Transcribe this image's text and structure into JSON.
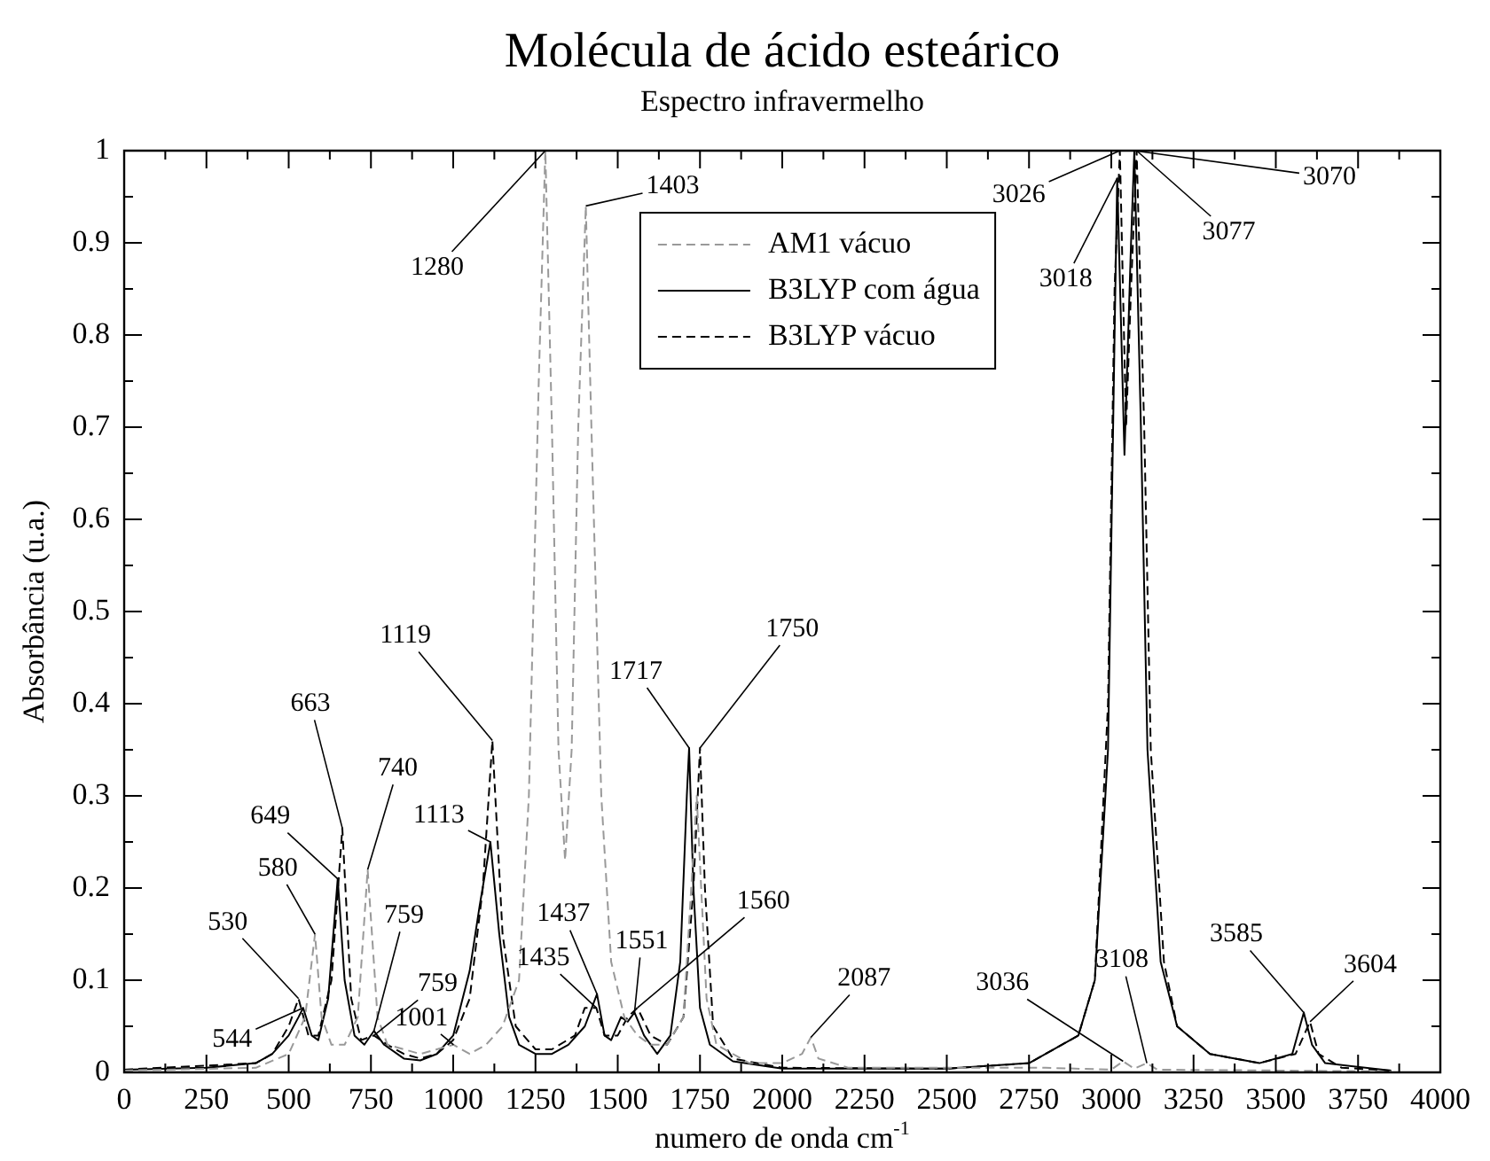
{
  "chart_data": {
    "type": "line",
    "title": "Molécula de ácido esteárico",
    "subtitle": "Espectro infravermelho",
    "xlabel": "numero de onda cm$^{-1}$",
    "ylabel": "Absorbância (u.a.)",
    "xlim": [
      0,
      4000
    ],
    "ylim": [
      0,
      1
    ],
    "xticks": [
      0,
      {
        "value": 125,
        "label": null
      },
      250,
      {
        "value": 375,
        "label": null
      },
      500,
      {
        "value": 625,
        "label": null
      },
      750,
      {
        "value": 875,
        "label": null
      },
      1000,
      {
        "value": 1125,
        "label": null
      },
      1250,
      {
        "value": 1375,
        "label": null
      },
      1500,
      {
        "value": 1625,
        "label": null
      },
      1750,
      {
        "value": 1875,
        "label": null
      },
      2000,
      {
        "value": 2125,
        "label": null
      },
      2250,
      {
        "value": 2375,
        "label": null
      },
      2500,
      {
        "value": 2625,
        "label": null
      },
      2750,
      {
        "value": 2875,
        "label": null
      },
      3000,
      {
        "value": 3125,
        "label": null
      },
      3250,
      {
        "value": 3375,
        "label": null
      },
      3500,
      {
        "value": 3625,
        "label": null
      },
      3750,
      {
        "value": 3875,
        "label": null
      },
      4000
    ],
    "yticks": [
      0,
      {
        "value": 0.05,
        "label": null
      },
      0.1,
      {
        "value": 0.15,
        "label": null
      },
      0.2,
      {
        "value": 0.25,
        "label": null
      },
      0.3,
      {
        "value": 0.35,
        "label": null
      },
      0.4,
      {
        "value": 0.45,
        "label": null
      },
      0.5,
      {
        "value": 0.55,
        "label": null
      },
      0.6,
      {
        "value": 0.65,
        "label": null
      },
      0.7,
      {
        "value": 0.75,
        "label": null
      },
      0.8,
      {
        "value": 0.85,
        "label": null
      },
      0.9,
      {
        "value": 0.95,
        "label": null
      },
      1
    ],
    "grid": false,
    "legend": "top",
    "marker": "none",
    "series": [
      {
        "name": "AM1 vácuo",
        "color": "#999999",
        "line_style": "dashed",
        "x": [
          0,
          400,
          500,
          550,
          580,
          600,
          630,
          670,
          710,
          740,
          770,
          800,
          850,
          900,
          950,
          1001,
          1050,
          1100,
          1150,
          1200,
          1230,
          1260,
          1280,
          1300,
          1320,
          1340,
          1360,
          1380,
          1403,
          1420,
          1450,
          1480,
          1520,
          1560,
          1600,
          1650,
          1700,
          1740,
          1770,
          1800,
          1900,
          2000,
          2060,
          2087,
          2110,
          2200,
          2800,
          3000,
          3036,
          3070,
          3108,
          3140,
          3500,
          3850
        ],
        "values": [
          0.002,
          0.005,
          0.02,
          0.06,
          0.15,
          0.06,
          0.03,
          0.03,
          0.06,
          0.22,
          0.06,
          0.03,
          0.025,
          0.02,
          0.025,
          0.03,
          0.02,
          0.03,
          0.05,
          0.1,
          0.3,
          0.75,
          1.0,
          0.7,
          0.35,
          0.23,
          0.35,
          0.7,
          0.94,
          0.7,
          0.3,
          0.12,
          0.06,
          0.04,
          0.03,
          0.03,
          0.06,
          0.3,
          0.08,
          0.03,
          0.01,
          0.01,
          0.02,
          0.038,
          0.015,
          0.005,
          0.005,
          0.003,
          0.012,
          0.004,
          0.01,
          0.003,
          0.002,
          0.001
        ]
      },
      {
        "name": "B3LYP com água",
        "color": "#000000",
        "line_style": "solid",
        "x": [
          0,
          250,
          400,
          450,
          500,
          530,
          544,
          570,
          590,
          620,
          649,
          670,
          700,
          730,
          759,
          790,
          850,
          900,
          950,
          1000,
          1050,
          1080,
          1113,
          1140,
          1170,
          1200,
          1250,
          1300,
          1350,
          1400,
          1437,
          1460,
          1480,
          1510,
          1530,
          1551,
          1580,
          1620,
          1660,
          1690,
          1710,
          1717,
          1730,
          1750,
          1780,
          1850,
          2000,
          2500,
          2750,
          2900,
          2950,
          2990,
          3010,
          3018,
          3040,
          3060,
          3070,
          3090,
          3110,
          3150,
          3200,
          3300,
          3450,
          3550,
          3585,
          3610,
          3650,
          3850
        ],
        "values": [
          0.003,
          0.005,
          0.01,
          0.02,
          0.04,
          0.06,
          0.07,
          0.04,
          0.035,
          0.08,
          0.21,
          0.1,
          0.04,
          0.03,
          0.045,
          0.03,
          0.015,
          0.013,
          0.02,
          0.04,
          0.11,
          0.18,
          0.25,
          0.15,
          0.06,
          0.03,
          0.02,
          0.02,
          0.03,
          0.05,
          0.085,
          0.04,
          0.035,
          0.06,
          0.055,
          0.065,
          0.04,
          0.02,
          0.04,
          0.12,
          0.3,
          0.352,
          0.2,
          0.07,
          0.03,
          0.012,
          0.004,
          0.004,
          0.01,
          0.04,
          0.1,
          0.35,
          0.8,
          0.97,
          0.67,
          0.9,
          1.0,
          0.7,
          0.35,
          0.12,
          0.05,
          0.02,
          0.01,
          0.02,
          0.065,
          0.03,
          0.01,
          0.002
        ]
      },
      {
        "name": "B3LYP vácuo",
        "color": "#000000",
        "line_style": "dashed",
        "x": [
          0,
          400,
          450,
          500,
          530,
          560,
          590,
          630,
          663,
          690,
          720,
          759,
          800,
          850,
          900,
          950,
          1000,
          1050,
          1090,
          1119,
          1150,
          1190,
          1250,
          1300,
          1370,
          1400,
          1435,
          1460,
          1500,
          1530,
          1560,
          1600,
          1650,
          1700,
          1730,
          1750,
          1765,
          1790,
          1850,
          2000,
          2500,
          2750,
          2900,
          2950,
          2990,
          3010,
          3026,
          3045,
          3060,
          3077,
          3100,
          3120,
          3160,
          3200,
          3300,
          3450,
          3560,
          3604,
          3630,
          3700,
          3850
        ],
        "values": [
          0.003,
          0.01,
          0.02,
          0.05,
          0.08,
          0.04,
          0.04,
          0.1,
          0.265,
          0.08,
          0.035,
          0.04,
          0.03,
          0.02,
          0.015,
          0.02,
          0.035,
          0.08,
          0.2,
          0.36,
          0.15,
          0.05,
          0.025,
          0.025,
          0.04,
          0.07,
          0.07,
          0.04,
          0.04,
          0.06,
          0.07,
          0.04,
          0.03,
          0.06,
          0.2,
          0.352,
          0.2,
          0.05,
          0.015,
          0.005,
          0.004,
          0.01,
          0.04,
          0.1,
          0.4,
          0.85,
          1.0,
          0.7,
          0.85,
          1.0,
          0.7,
          0.35,
          0.12,
          0.05,
          0.02,
          0.01,
          0.02,
          0.055,
          0.02,
          0.005,
          0.002
        ]
      }
    ],
    "annotations": [
      {
        "text": "544",
        "x": 544,
        "y": 0.07
      },
      {
        "text": "530",
        "x": 530,
        "y": 0.08
      },
      {
        "text": "580",
        "x": 580,
        "y": 0.15
      },
      {
        "text": "649",
        "x": 649,
        "y": 0.21
      },
      {
        "text": "663",
        "x": 663,
        "y": 0.265
      },
      {
        "text": "740",
        "x": 740,
        "y": 0.22
      },
      {
        "text": "759",
        "x": 759,
        "y": 0.045
      },
      {
        "text": "759",
        "x": 759,
        "y": 0.04
      },
      {
        "text": "1001",
        "x": 1001,
        "y": 0.03
      },
      {
        "text": "1113",
        "x": 1113,
        "y": 0.25
      },
      {
        "text": "1119",
        "x": 1119,
        "y": 0.36
      },
      {
        "text": "1280",
        "x": 1280,
        "y": 1.0
      },
      {
        "text": "1403",
        "x": 1403,
        "y": 0.94
      },
      {
        "text": "1435",
        "x": 1435,
        "y": 0.07
      },
      {
        "text": "1437",
        "x": 1437,
        "y": 0.085
      },
      {
        "text": "1551",
        "x": 1551,
        "y": 0.065
      },
      {
        "text": "1560",
        "x": 1560,
        "y": 0.07
      },
      {
        "text": "1717",
        "x": 1717,
        "y": 0.352
      },
      {
        "text": "1750",
        "x": 1750,
        "y": 0.352
      },
      {
        "text": "2087",
        "x": 2087,
        "y": 0.038
      },
      {
        "text": "3036",
        "x": 3036,
        "y": 0.012
      },
      {
        "text": "3108",
        "x": 3108,
        "y": 0.01
      },
      {
        "text": "3018",
        "x": 3018,
        "y": 0.97
      },
      {
        "text": "3026",
        "x": 3026,
        "y": 1.0
      },
      {
        "text": "3070",
        "x": 3070,
        "y": 1.0
      },
      {
        "text": "3077",
        "x": 3077,
        "y": 1.0
      },
      {
        "text": "3585",
        "x": 3585,
        "y": 0.065
      },
      {
        "text": "3604",
        "x": 3604,
        "y": 0.055
      }
    ]
  }
}
